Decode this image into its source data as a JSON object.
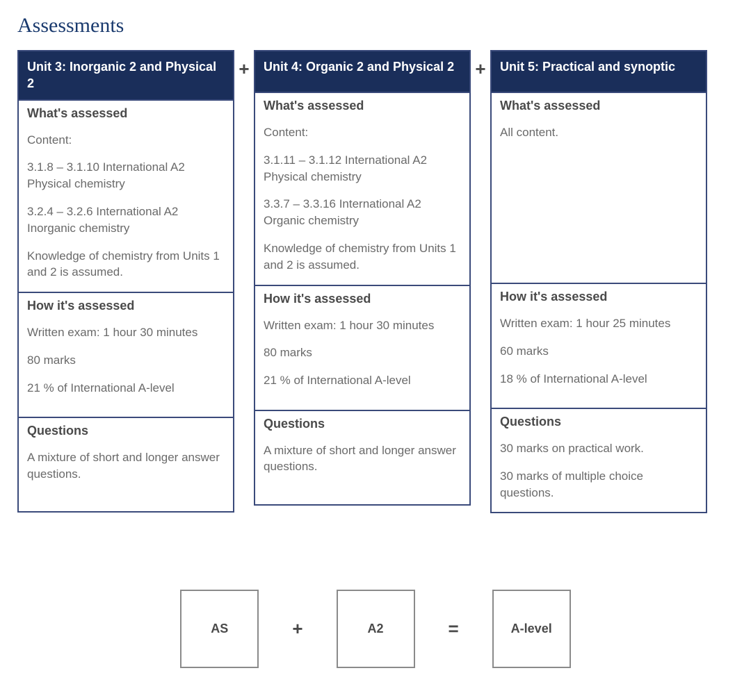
{
  "page": {
    "title": "Assessments"
  },
  "separators": {
    "plus": "+",
    "equals": "="
  },
  "colors": {
    "header_bg": "#1a2e5a",
    "border": "#3a4a7a",
    "title": "#1a3a6e",
    "heading": "#4a4a4a",
    "body": "#6a6a6a",
    "eq_border": "#8a8a8a"
  },
  "units": {
    "u3": {
      "title": "Unit 3: Inorganic 2 and Physical 2",
      "whats_assessed_heading": "What's assessed",
      "content_label": "Content:",
      "content_1": "3.1.8 – 3.1.10 International A2 Physical chemistry",
      "content_2": "3.2.4 – 3.2.6 International A2 Inorganic chemistry",
      "content_3": "Knowledge of chemistry from Units 1 and 2 is assumed.",
      "how_heading": "How it's assessed",
      "how_1": "Written exam: 1 hour 30 minutes",
      "how_2": "80 marks",
      "how_3": "21 % of International A-level",
      "q_heading": "Questions",
      "q_1": "A mixture of short and longer answer questions."
    },
    "u4": {
      "title": "Unit 4: Organic 2 and Physical 2",
      "whats_assessed_heading": "What's assessed",
      "content_label": "Content:",
      "content_1": "3.1.11 – 3.1.12 International A2 Physical chemistry",
      "content_2": "3.3.7 – 3.3.16 International A2 Organic chemistry",
      "content_3": "Knowledge of chemistry from Units 1 and 2 is assumed.",
      "how_heading": "How it's assessed",
      "how_1": "Written exam: 1 hour 30 minutes",
      "how_2": "80 marks",
      "how_3": "21 % of International A-level",
      "q_heading": "Questions",
      "q_1": "A mixture of short and longer answer questions."
    },
    "u5": {
      "title": "Unit 5: Practical and synoptic",
      "whats_assessed_heading": "What's assessed",
      "content_label": "All content.",
      "how_heading": "How it's assessed",
      "how_1": "Written exam: 1 hour 25 minutes",
      "how_2": "60 marks",
      "how_3": "18 % of International A-level",
      "q_heading": "Questions",
      "q_1": "30 marks on practical work.",
      "q_2": "30 marks of multiple choice questions."
    }
  },
  "equation": {
    "box1": "AS",
    "box2": "A2",
    "box3": "A-level"
  }
}
